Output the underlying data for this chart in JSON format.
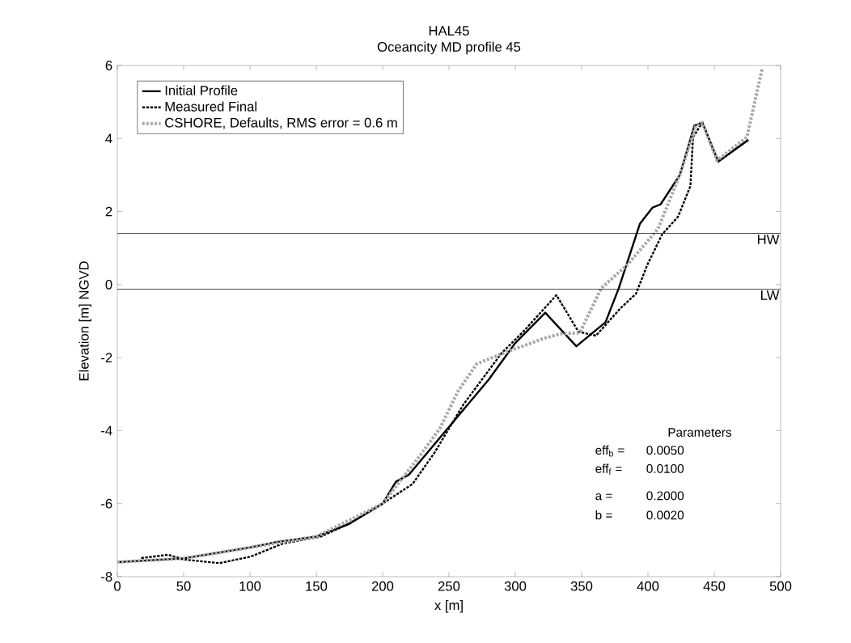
{
  "chart_data": {
    "type": "line",
    "title": "HAL45",
    "subtitle": "Oceancity MD profile 45",
    "xlabel": "x [m]",
    "ylabel": "Elevation [m] NGVD",
    "xlim": [
      0,
      500
    ],
    "ylim": [
      -8,
      6
    ],
    "xticks": [
      0,
      50,
      100,
      150,
      200,
      250,
      300,
      350,
      400,
      450,
      500
    ],
    "yticks": [
      -8,
      -6,
      -4,
      -2,
      0,
      2,
      4,
      6
    ],
    "grid": false,
    "legend": "top left",
    "marker": "none",
    "series": [
      {
        "name": "Initial Profile",
        "color": "#000000",
        "line_style": "solid",
        "x": [
          0,
          50,
          100,
          120,
          150,
          175,
          200,
          210,
          220,
          250,
          280,
          300,
          322.6,
          346,
          368,
          378,
          394,
          403.5,
          409.6,
          424,
          435,
          441,
          453,
          475.6
        ],
        "values": [
          -7.6,
          -7.5,
          -7.2,
          -7.05,
          -6.9,
          -6.55,
          -6.0,
          -5.4,
          -5.2,
          -3.9,
          -2.6,
          -1.6,
          -0.77,
          -1.69,
          -1.03,
          -0.1,
          1.67,
          2.11,
          2.2,
          3.0,
          4.35,
          4.44,
          3.37,
          3.96
        ]
      },
      {
        "name": "Measured Final",
        "color": "#000000",
        "line_style": "dashed",
        "x": [
          18,
          38.6,
          50,
          77,
          100.6,
          125,
          153.5,
          174,
          200,
          222.6,
          239,
          261,
          289.6,
          306,
          331,
          347.6,
          360.8,
          379,
          391,
          399.4,
          410.6,
          422.7,
          432,
          434,
          441,
          453,
          475.6
        ],
        "values": [
          -7.49,
          -7.4,
          -7.53,
          -7.63,
          -7.45,
          -7.09,
          -6.9,
          -6.56,
          -6.0,
          -5.46,
          -4.61,
          -3.28,
          -1.88,
          -1.29,
          -0.29,
          -1.29,
          -1.4,
          -0.66,
          -0.25,
          0.53,
          1.37,
          1.86,
          2.7,
          4.04,
          4.44,
          3.37,
          3.96
        ]
      },
      {
        "name": "CSHORE, Defaults, RMS error = 0.6 m",
        "color": "#a8a8a8",
        "line_style": "dotted",
        "x": [
          0,
          50,
          100,
          150,
          200,
          226.6,
          243,
          257,
          271,
          293.7,
          322,
          334,
          348.6,
          364.8,
          385,
          407.5,
          424,
          436,
          441,
          452,
          474.6,
          486
        ],
        "values": [
          -7.6,
          -7.5,
          -7.2,
          -6.9,
          -6.0,
          -4.76,
          -3.95,
          -2.91,
          -2.17,
          -1.84,
          -1.47,
          -1.35,
          -1.32,
          -0.1,
          0.56,
          1.52,
          3.0,
          4.33,
          4.44,
          3.4,
          4.04,
          5.9
        ]
      }
    ],
    "ref_lines": [
      {
        "axis": "y",
        "value": 1.4,
        "label": "HW",
        "color": "#000000"
      },
      {
        "axis": "y",
        "value": -0.13,
        "label": "LW",
        "color": "#000000"
      }
    ],
    "annotations": [
      "Parameters",
      "eff$_{b}$ =",
      "0.0050",
      "eff$_{f}$ =",
      "0.0100",
      "a    =",
      "0.2000",
      "b    =",
      "0.0020"
    ]
  }
}
